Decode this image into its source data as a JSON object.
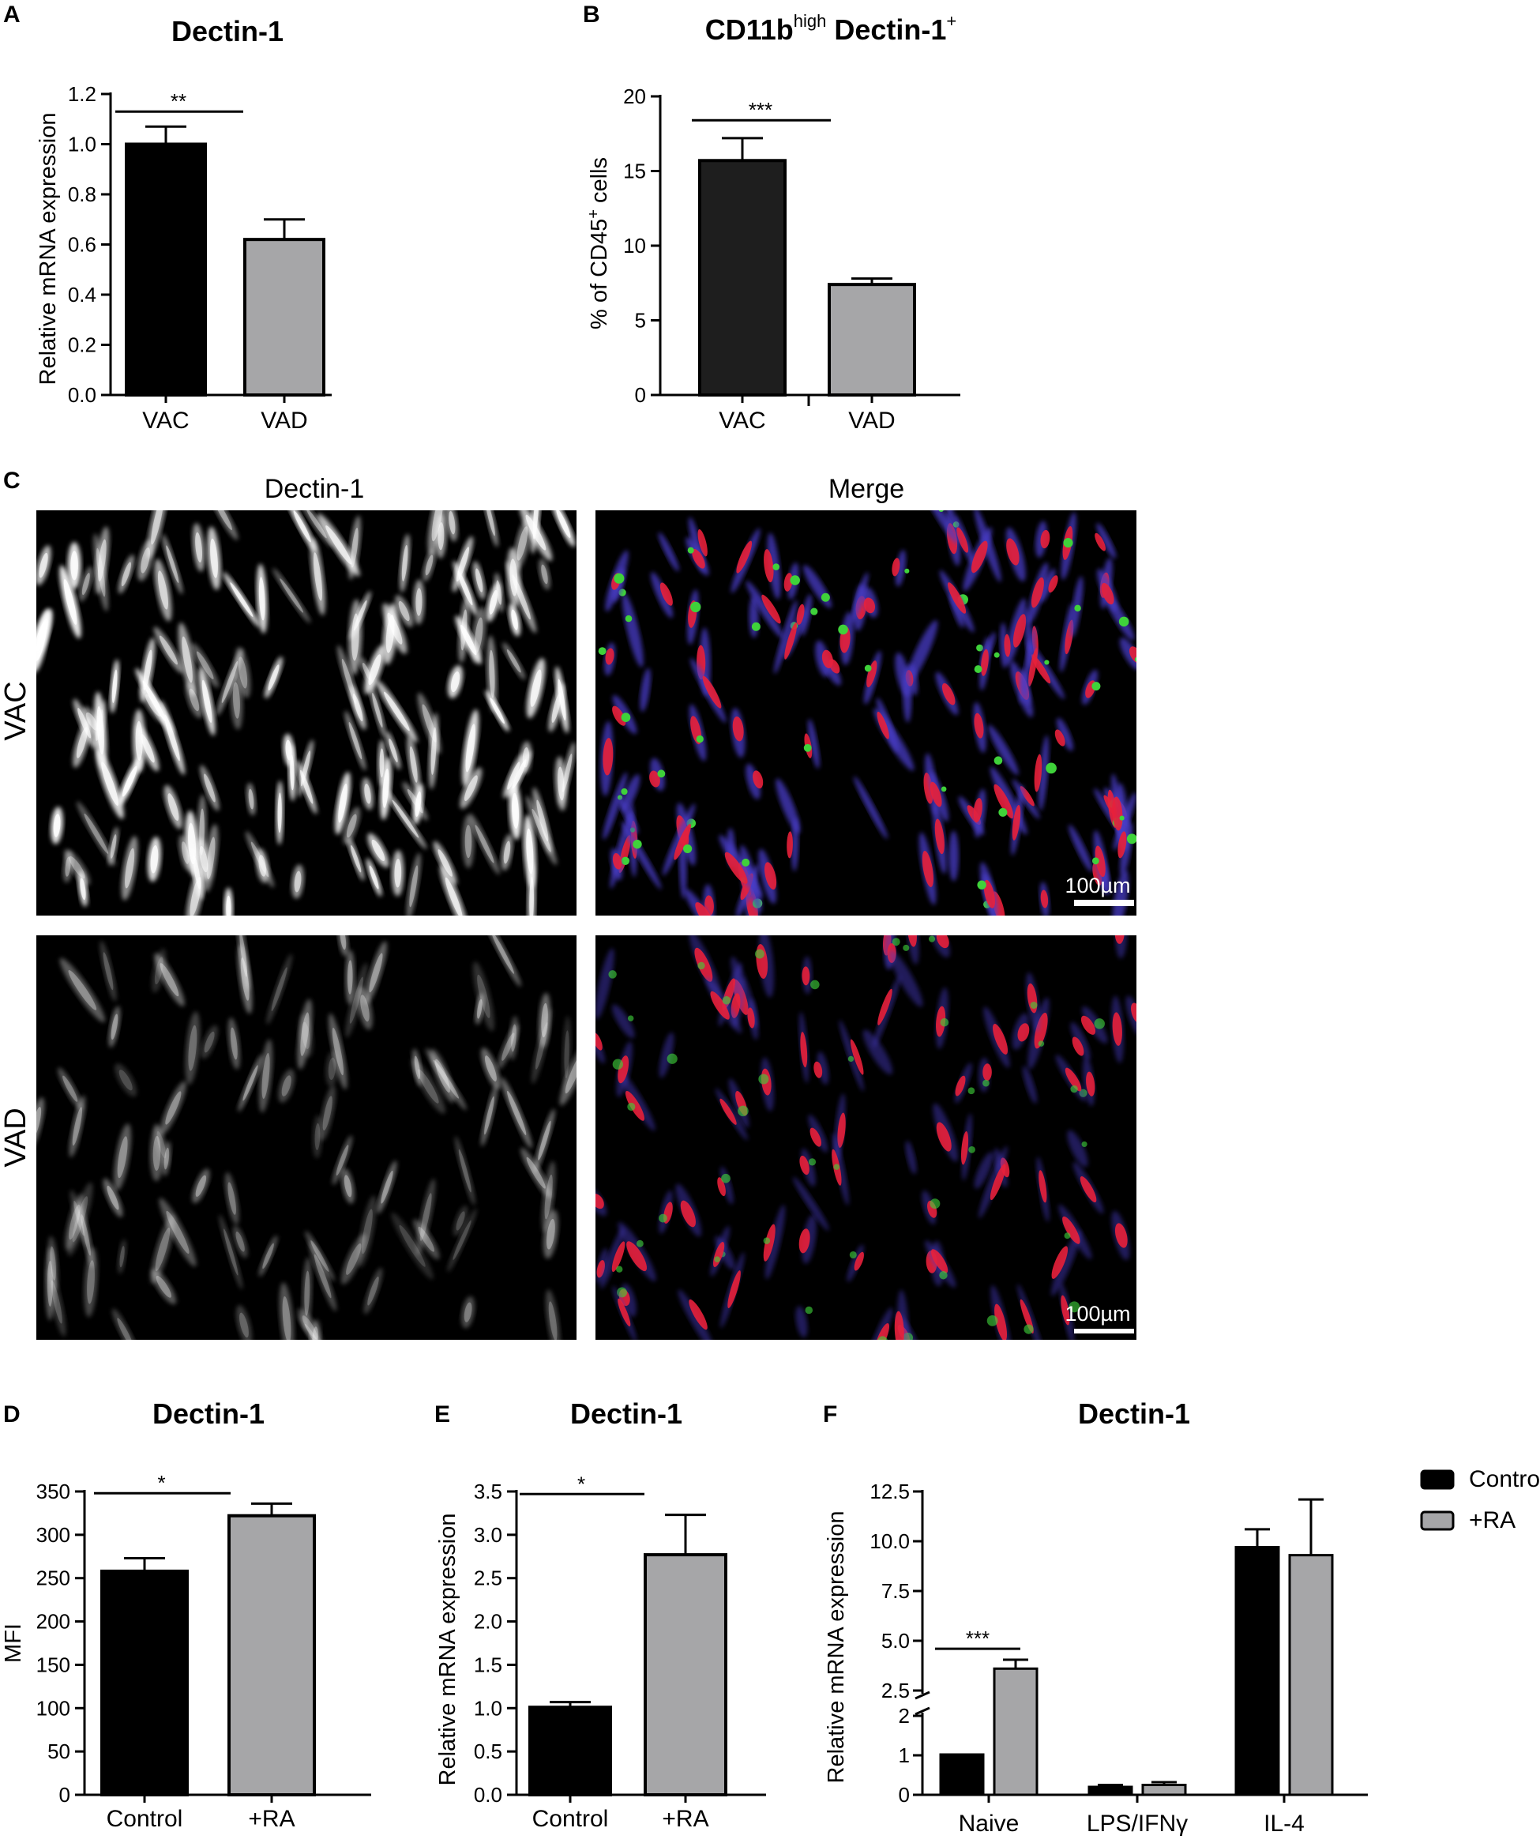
{
  "panel_c": {
    "letter": "C",
    "column_headers": [
      "Dectin-1",
      "Merge"
    ],
    "row_labels": [
      "VAC",
      "VAD"
    ],
    "scale_bar_label": "100µm",
    "channel_colors": {
      "dectin": "#ffffff",
      "red": "#e8203a",
      "green": "#3fd23a",
      "blue": "#4a3cc8"
    }
  },
  "chart_data": [
    {
      "panel": "A",
      "type": "bar",
      "title": "Dectin-1",
      "ylabel": "Relative mRNA expression",
      "xlabel": "",
      "categories": [
        "VAC",
        "VAD"
      ],
      "values": [
        1.0,
        0.62
      ],
      "errors": [
        0.07,
        0.08
      ],
      "colors": [
        "#000000",
        "#a6a6a8"
      ],
      "ylim": [
        0,
        1.2
      ],
      "yticks": [
        0.0,
        0.2,
        0.4,
        0.6,
        0.8,
        1.0,
        1.2
      ],
      "ytick_labels": [
        "0.0",
        "0.2",
        "0.4",
        "0.6",
        "0.8",
        "1.0",
        "1.2"
      ],
      "significance": [
        {
          "from": 0,
          "to": 1,
          "label": "**",
          "y": 1.13
        }
      ]
    },
    {
      "panel": "B",
      "type": "bar",
      "title": "CD11b",
      "title_sup": "high",
      "title_rest": " Dectin-1",
      "title_sup2": "+",
      "ylabel": "% of CD45",
      "ylabel_sup": "+",
      "ylabel_rest": " cells",
      "xlabel": "",
      "categories": [
        "VAC",
        "VAD"
      ],
      "values": [
        15.7,
        7.4
      ],
      "errors": [
        1.5,
        0.4
      ],
      "colors": [
        "#1e1e1e",
        "#a6a6a8"
      ],
      "ylim": [
        0,
        20
      ],
      "yticks": [
        0,
        5,
        10,
        15,
        20
      ],
      "ytick_labels": [
        "0",
        "5",
        "10",
        "15",
        "20"
      ],
      "significance": [
        {
          "from": 0,
          "to": 1,
          "label": "***",
          "y": 18.4
        }
      ]
    },
    {
      "panel": "D",
      "type": "bar",
      "title": "Dectin-1",
      "ylabel": "MFI",
      "xlabel": "",
      "categories": [
        "Control",
        "+RA"
      ],
      "values": [
        258,
        322
      ],
      "errors": [
        15,
        14
      ],
      "colors": [
        "#000000",
        "#a6a6a8"
      ],
      "ylim": [
        0,
        350
      ],
      "yticks": [
        0,
        50,
        100,
        150,
        200,
        250,
        300,
        350
      ],
      "ytick_labels": [
        "0",
        "50",
        "100",
        "150",
        "200",
        "250",
        "300",
        "350"
      ],
      "significance": [
        {
          "from": 0,
          "to": 1,
          "label": "*",
          "y": 348
        }
      ]
    },
    {
      "panel": "E",
      "type": "bar",
      "title": "Dectin-1",
      "ylabel": "Relative mRNA expression",
      "xlabel": "",
      "categories": [
        "Control",
        "+RA"
      ],
      "values": [
        1.01,
        2.77
      ],
      "errors": [
        0.06,
        0.46
      ],
      "colors": [
        "#000000",
        "#a6a6a8"
      ],
      "ylim": [
        0,
        3.5
      ],
      "yticks": [
        0.0,
        0.5,
        1.0,
        1.5,
        2.0,
        2.5,
        3.0,
        3.5
      ],
      "ytick_labels": [
        "0.0",
        "0.5",
        "1.0",
        "1.5",
        "2.0",
        "2.5",
        "3.0",
        "3.5"
      ],
      "significance": [
        {
          "from": 0,
          "to": 1,
          "label": "*",
          "y": 3.47
        }
      ]
    },
    {
      "panel": "F",
      "type": "bar",
      "title": "Dectin-1",
      "ylabel": "Relative mRNA expression",
      "xlabel": "",
      "categories": [
        "Naive",
        "LPS/IFNγ",
        "IL-4"
      ],
      "series": [
        {
          "name": "Control",
          "values": [
            1.02,
            0.2,
            9.7
          ],
          "errors": [
            0.0,
            0.05,
            0.9
          ],
          "color": "#000000"
        },
        {
          "name": "+RA",
          "values": [
            3.6,
            0.25,
            9.3
          ],
          "errors": [
            0.45,
            0.07,
            2.8
          ],
          "color": "#a6a6a8"
        }
      ],
      "axis_break": [
        2.0,
        2.5
      ],
      "ylim": [
        0,
        12.5
      ],
      "yticks": [
        0,
        1,
        2,
        2.5,
        5.0,
        7.5,
        10.0,
        12.5
      ],
      "ytick_labels": [
        "0",
        "1",
        "2",
        "2.5",
        "5.0",
        "7.5",
        "10.0",
        "12.5"
      ],
      "legend": "top-right",
      "significance": [
        {
          "group": 0,
          "label": "***",
          "y": 4.6
        }
      ]
    }
  ]
}
